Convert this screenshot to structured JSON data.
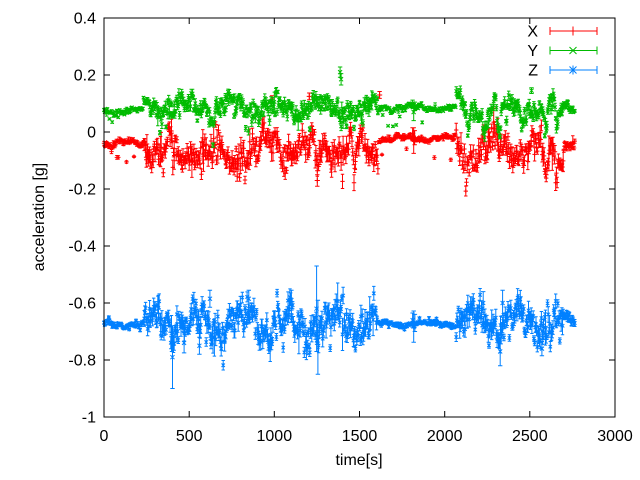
{
  "window": {
    "background": "#ffffff"
  },
  "chart_data": {
    "type": "scatter",
    "subtype": "yerrorbars",
    "title": "",
    "xlabel": "time[s]",
    "ylabel": "acceleration [g]",
    "xlim": [
      0,
      3000
    ],
    "ylim": [
      -1,
      0.4
    ],
    "xticks": {
      "values": [
        0,
        500,
        1000,
        1500,
        2000,
        2500,
        3000
      ],
      "labels": [
        "0",
        "500",
        "1000",
        "1500",
        "2000",
        "2500",
        "3000"
      ]
    },
    "yticks": {
      "values": [
        0.4,
        0.2,
        0,
        -0.2,
        -0.4,
        -0.6,
        -0.8,
        -1
      ],
      "labels": [
        "0.4",
        "0.2",
        "0",
        "-0.2",
        "-0.4",
        "-0.6",
        "-0.8",
        "-1"
      ]
    },
    "grid": false,
    "legend_position": "top-right-inside",
    "axis_color": "#000000",
    "text_color": "#000000",
    "background": "#ffffff",
    "t_end": 2768,
    "sample_step_s": 4,
    "series": [
      {
        "name": "X",
        "color": "#ff0000",
        "marker": "plus",
        "seed": 11,
        "skew": -0.05,
        "segments": [
          {
            "t": [
              0,
              235
            ],
            "mean": -0.04,
            "noise": 0.009,
            "err": 0.005
          },
          {
            "t": [
              235,
              1612
            ],
            "mean": -0.055,
            "noise": 0.038,
            "err": 0.02
          },
          {
            "t": [
              1612,
              2065
            ],
            "mean": -0.022,
            "noise": 0.008,
            "err": 0.005
          },
          {
            "t": [
              2065,
              2700
            ],
            "mean": -0.058,
            "noise": 0.04,
            "err": 0.02
          },
          {
            "t": [
              2700,
              2768
            ],
            "mean": -0.038,
            "noise": 0.013,
            "err": 0.008
          }
        ],
        "dips": [
          {
            "t": 450,
            "depth": 0.05,
            "width": 25
          },
          {
            "t": 730,
            "depth": 0.08,
            "width": 20
          },
          {
            "t": 1250,
            "depth": 0.09,
            "width": 12
          },
          {
            "t": 1470,
            "depth": 0.055,
            "width": 15
          },
          {
            "t": 2140,
            "depth": 0.07,
            "width": 12
          },
          {
            "t": 2590,
            "depth": 0.12,
            "width": 12
          },
          {
            "t": 2655,
            "depth": 0.08,
            "width": 12
          }
        ],
        "spikes": [
          {
            "t": 782,
            "v": -0.155,
            "err": 0.018
          },
          {
            "t": 987,
            "v": 0.115,
            "err": 0.012
          },
          {
            "t": 1205,
            "v": 0.125,
            "err": 0.012
          },
          {
            "t": 1252,
            "v": -0.17,
            "err": 0.02
          },
          {
            "t": 1618,
            "v": 0.13,
            "err": 0.012
          },
          {
            "t": 1812,
            "v": -0.005,
            "err": 0.02
          },
          {
            "t": 1818,
            "v": -0.03,
            "err": 0.045
          },
          {
            "t": 1824,
            "v": -0.02,
            "err": 0.025
          },
          {
            "t": 2230,
            "v": 0.01,
            "err": 0.015
          },
          {
            "t": 2256,
            "v": 0.0,
            "err": 0.015
          }
        ]
      },
      {
        "name": "Y",
        "color": "#00bb00",
        "marker": "cross",
        "seed": 22,
        "skew": -0.04,
        "segments": [
          {
            "t": [
              0,
              230
            ],
            "mean": 0.074,
            "noise": 0.008,
            "err": 0.004
          },
          {
            "t": [
              230,
              268
            ],
            "mean": 0.102,
            "noise": 0.012,
            "err": 0.006
          },
          {
            "t": [
              268,
              1612
            ],
            "mean": 0.088,
            "noise": 0.026,
            "err": 0.012
          },
          {
            "t": [
              1612,
              2065
            ],
            "mean": 0.085,
            "noise": 0.008,
            "err": 0.004
          },
          {
            "t": [
              2065,
              2700
            ],
            "mean": 0.09,
            "noise": 0.028,
            "err": 0.012
          },
          {
            "t": [
              2700,
              2768
            ],
            "mean": 0.092,
            "noise": 0.012,
            "err": 0.006
          }
        ],
        "dips": [
          {
            "t": 640,
            "depth": 0.05,
            "width": 12
          },
          {
            "t": 1515,
            "depth": 0.075,
            "width": 10
          },
          {
            "t": 2140,
            "depth": 0.1,
            "width": 14
          },
          {
            "t": 2232,
            "depth": 0.1,
            "width": 12
          },
          {
            "t": 2320,
            "depth": 0.09,
            "width": 12
          },
          {
            "t": 2362,
            "depth": 0.07,
            "width": 10
          },
          {
            "t": 2452,
            "depth": 0.06,
            "width": 10
          },
          {
            "t": 2590,
            "depth": 0.105,
            "width": 14
          },
          {
            "t": 2656,
            "depth": 0.09,
            "width": 12
          }
        ],
        "spikes": [
          {
            "t": 1386,
            "v": 0.21,
            "err": 0.018
          },
          {
            "t": 1392,
            "v": 0.185,
            "err": 0.02
          },
          {
            "t": 1812,
            "v": 0.1,
            "err": 0.012
          },
          {
            "t": 1818,
            "v": 0.07,
            "err": 0.03
          },
          {
            "t": 1825,
            "v": 0.09,
            "err": 0.015
          },
          {
            "t": 2510,
            "v": 0.145,
            "err": 0.01
          }
        ]
      },
      {
        "name": "Z",
        "color": "#0080ff",
        "marker": "asterisk",
        "seed": 33,
        "skew": 0,
        "segments": [
          {
            "t": [
              0,
              235
            ],
            "mean": -0.676,
            "noise": 0.008,
            "err": 0.004
          },
          {
            "t": [
              235,
              1605
            ],
            "mean": -0.672,
            "noise": 0.042,
            "err": 0.022
          },
          {
            "t": [
              1605,
              2065
            ],
            "mean": -0.673,
            "noise": 0.007,
            "err": 0.004
          },
          {
            "t": [
              2065,
              2700
            ],
            "mean": -0.67,
            "noise": 0.042,
            "err": 0.022
          },
          {
            "t": [
              2700,
              2768
            ],
            "mean": -0.668,
            "noise": 0.016,
            "err": 0.009
          }
        ],
        "dips": [],
        "spikes": [
          {
            "t": 402,
            "v": -0.79,
            "err": 0.11
          },
          {
            "t": 470,
            "v": -0.74,
            "err": 0.035
          },
          {
            "t": 560,
            "v": -0.75,
            "err": 0.03
          },
          {
            "t": 622,
            "v": -0.585,
            "err": 0.03
          },
          {
            "t": 850,
            "v": -0.585,
            "err": 0.03
          },
          {
            "t": 1100,
            "v": -0.59,
            "err": 0.035
          },
          {
            "t": 1248,
            "v": -0.62,
            "err": 0.15
          },
          {
            "t": 1256,
            "v": -0.72,
            "err": 0.13
          },
          {
            "t": 1812,
            "v": -0.66,
            "err": 0.025
          },
          {
            "t": 1818,
            "v": -0.683,
            "err": 0.055
          },
          {
            "t": 1825,
            "v": -0.67,
            "err": 0.03
          },
          {
            "t": 2226,
            "v": -0.6,
            "err": 0.04
          },
          {
            "t": 2326,
            "v": -0.77,
            "err": 0.05
          },
          {
            "t": 2340,
            "v": -0.6,
            "err": 0.045
          },
          {
            "t": 2571,
            "v": -0.76,
            "err": 0.025
          }
        ]
      }
    ],
    "legend": [
      {
        "label": "X"
      },
      {
        "label": "Y"
      },
      {
        "label": "Z"
      }
    ]
  }
}
